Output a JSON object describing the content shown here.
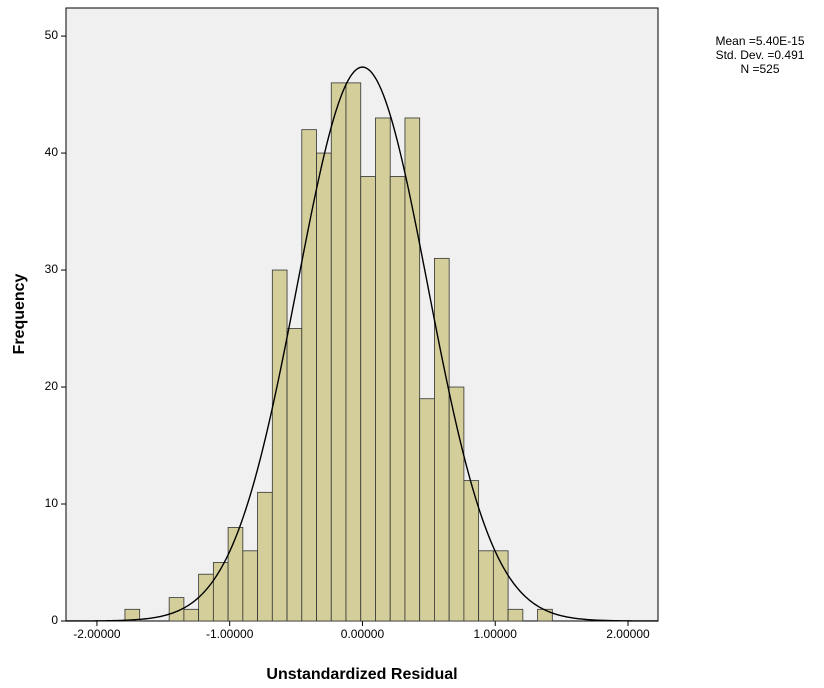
{
  "chart_data": {
    "type": "histogram",
    "xlabel": "Unstandardized Residual",
    "ylabel": "Frequency",
    "bins": [
      -1.789,
      -1.678,
      -1.567,
      -1.456,
      -1.345,
      -1.234,
      -1.123,
      -1.012,
      -0.901,
      -0.79,
      -0.679,
      -0.568,
      -0.457,
      -0.346,
      -0.235,
      -0.124,
      -0.013,
      0.098,
      0.209,
      0.32,
      0.431,
      0.542,
      0.653,
      0.764,
      0.875,
      0.986,
      1.097,
      1.208,
      1.319,
      1.43
    ],
    "values": [
      1,
      0,
      0,
      2,
      1,
      4,
      5,
      8,
      6,
      11,
      30,
      25,
      42,
      40,
      46,
      46,
      38,
      43,
      38,
      43,
      19,
      31,
      20,
      12,
      6,
      6,
      1,
      0,
      1
    ],
    "color": "#d4cf9a",
    "curve_color": "#000000",
    "background": "#f0f0f0",
    "xlim": [
      -2.233,
      2.226
    ],
    "ylim": [
      0,
      52.4
    ],
    "xticks": [
      {
        "value": -2,
        "label": "-2.00000"
      },
      {
        "value": -1,
        "label": "-1.00000"
      },
      {
        "value": 0,
        "label": "0.00000"
      },
      {
        "value": 1,
        "label": "1.00000"
      },
      {
        "value": 2,
        "label": "2.00000"
      }
    ],
    "yticks": [
      0,
      10,
      20,
      30,
      40,
      50
    ],
    "stats": [
      {
        "value": 5.4e-15,
        "label": "Mean =5.40E-15"
      },
      {
        "value": 0.491,
        "label": "Std. Dev. =0.491"
      },
      {
        "value": 525,
        "label": "N =525"
      }
    ]
  }
}
